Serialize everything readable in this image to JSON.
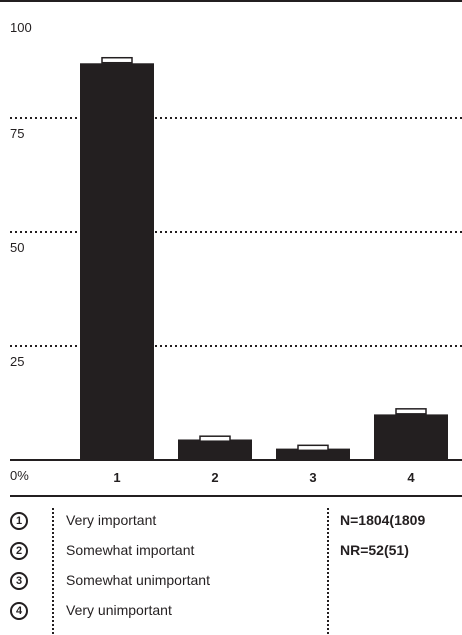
{
  "chart_data": {
    "type": "bar",
    "categories": [
      "1",
      "2",
      "3",
      "4"
    ],
    "values": [
      87,
      4.5,
      2.5,
      10
    ],
    "comparison_markers": [
      88,
      5,
      3,
      11
    ],
    "ylim": [
      0,
      100
    ],
    "yticks": [
      {
        "value": 100,
        "label": "100"
      },
      {
        "value": 75,
        "label": "75"
      },
      {
        "value": 50,
        "label": "50"
      },
      {
        "value": 25,
        "label": "25"
      },
      {
        "value": 0,
        "label": "0%"
      }
    ],
    "grid": "dotted",
    "bar_color": "#231f20",
    "title": "",
    "xlabel": "",
    "ylabel": ""
  },
  "legend": {
    "items": [
      {
        "num": "1",
        "label": "Very important"
      },
      {
        "num": "2",
        "label": "Somewhat important"
      },
      {
        "num": "3",
        "label": "Somewhat unimportant"
      },
      {
        "num": "4",
        "label": "Very unimportant"
      }
    ]
  },
  "stats": {
    "n": "N=1804(1809",
    "nr": "NR=52(51)"
  }
}
